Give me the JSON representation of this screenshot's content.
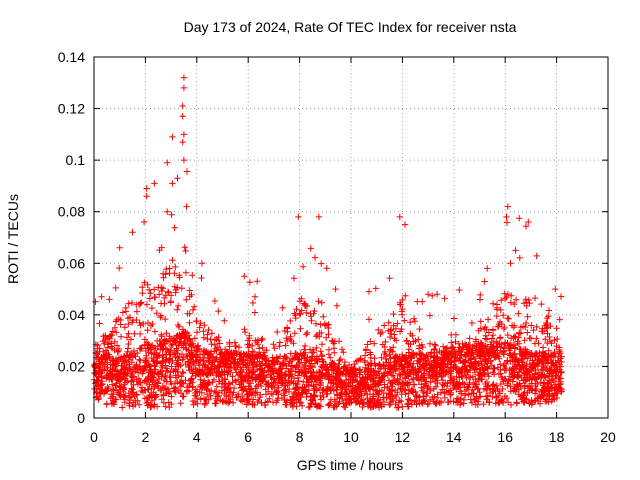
{
  "chart_data": {
    "type": "scatter",
    "title": "Day 173 of 2024, Rate Of TEC Index for receiver nsta",
    "xlabel": "GPS time / hours",
    "ylabel": "ROTI / TECUs",
    "xlim": [
      0,
      20
    ],
    "ylim": [
      0,
      0.14
    ],
    "xticks": [
      0,
      2,
      4,
      6,
      8,
      10,
      12,
      14,
      16,
      18,
      20
    ],
    "yticks": [
      0,
      0.02,
      0.04,
      0.06,
      0.08,
      0.1,
      0.12,
      0.14
    ],
    "ytick_labels": [
      "0",
      "0.02",
      "0.04",
      "0.06",
      "0.08",
      "0.1",
      "0.12",
      "0.14"
    ],
    "grid": true,
    "marker": "+",
    "color": "#ff0000",
    "series": [
      {
        "name": "ROTI",
        "baseline_profile": [
          {
            "x": 0.0,
            "y_min": 0.006,
            "y_median": 0.016,
            "y_max": 0.046
          },
          {
            "x": 1.0,
            "y_min": 0.004,
            "y_median": 0.015,
            "y_max": 0.066
          },
          {
            "x": 2.0,
            "y_min": 0.004,
            "y_median": 0.018,
            "y_max": 0.089
          },
          {
            "x": 3.0,
            "y_min": 0.004,
            "y_median": 0.02,
            "y_max": 0.099
          },
          {
            "x": 3.5,
            "y_min": 0.005,
            "y_median": 0.022,
            "y_max": 0.132
          },
          {
            "x": 4.0,
            "y_min": 0.005,
            "y_median": 0.017,
            "y_max": 0.065
          },
          {
            "x": 5.0,
            "y_min": 0.005,
            "y_median": 0.016,
            "y_max": 0.048
          },
          {
            "x": 6.0,
            "y_min": 0.005,
            "y_median": 0.016,
            "y_max": 0.055
          },
          {
            "x": 7.0,
            "y_min": 0.005,
            "y_median": 0.015,
            "y_max": 0.049
          },
          {
            "x": 8.0,
            "y_min": 0.004,
            "y_median": 0.016,
            "y_max": 0.078
          },
          {
            "x": 9.0,
            "y_min": 0.004,
            "y_median": 0.014,
            "y_max": 0.068
          },
          {
            "x": 10.0,
            "y_min": 0.004,
            "y_median": 0.012,
            "y_max": 0.035
          },
          {
            "x": 10.7,
            "y_min": 0.004,
            "y_median": 0.012,
            "y_max": 0.049
          },
          {
            "x": 12.0,
            "y_min": 0.004,
            "y_median": 0.016,
            "y_max": 0.078
          },
          {
            "x": 13.0,
            "y_min": 0.005,
            "y_median": 0.016,
            "y_max": 0.048
          },
          {
            "x": 14.0,
            "y_min": 0.005,
            "y_median": 0.017,
            "y_max": 0.05
          },
          {
            "x": 15.0,
            "y_min": 0.005,
            "y_median": 0.018,
            "y_max": 0.058
          },
          {
            "x": 16.0,
            "y_min": 0.005,
            "y_median": 0.019,
            "y_max": 0.082
          },
          {
            "x": 17.0,
            "y_min": 0.005,
            "y_median": 0.016,
            "y_max": 0.076
          },
          {
            "x": 18.2,
            "y_min": 0.006,
            "y_median": 0.015,
            "y_max": 0.05
          }
        ],
        "notable_points": [
          {
            "x": 3.5,
            "y": 0.132
          },
          {
            "x": 3.5,
            "y": 0.128
          },
          {
            "x": 3.45,
            "y": 0.121
          },
          {
            "x": 3.45,
            "y": 0.117
          },
          {
            "x": 3.5,
            "y": 0.11
          },
          {
            "x": 3.05,
            "y": 0.109
          },
          {
            "x": 3.45,
            "y": 0.107
          },
          {
            "x": 3.5,
            "y": 0.1
          },
          {
            "x": 2.85,
            "y": 0.099
          },
          {
            "x": 3.25,
            "y": 0.093
          },
          {
            "x": 3.05,
            "y": 0.091
          },
          {
            "x": 2.05,
            "y": 0.089
          },
          {
            "x": 2.05,
            "y": 0.086
          },
          {
            "x": 2.35,
            "y": 0.091
          },
          {
            "x": 3.6,
            "y": 0.082
          },
          {
            "x": 2.85,
            "y": 0.08
          },
          {
            "x": 1.95,
            "y": 0.076
          },
          {
            "x": 7.95,
            "y": 0.078
          },
          {
            "x": 8.75,
            "y": 0.078
          },
          {
            "x": 11.9,
            "y": 0.078
          },
          {
            "x": 16.1,
            "y": 0.082
          },
          {
            "x": 16.05,
            "y": 0.078
          },
          {
            "x": 16.9,
            "y": 0.076
          },
          {
            "x": 12.1,
            "y": 0.075
          },
          {
            "x": 0.6,
            "y": 0.046
          },
          {
            "x": 1.0,
            "y": 0.066
          },
          {
            "x": 4.2,
            "y": 0.06
          },
          {
            "x": 5.85,
            "y": 0.055
          },
          {
            "x": 6.35,
            "y": 0.053
          },
          {
            "x": 9.4,
            "y": 0.05
          },
          {
            "x": 10.7,
            "y": 0.049
          },
          {
            "x": 13.35,
            "y": 0.048
          },
          {
            "x": 17.95,
            "y": 0.05
          },
          {
            "x": 15.3,
            "y": 0.058
          },
          {
            "x": 16.4,
            "y": 0.065
          },
          {
            "x": 13.0,
            "y": 0.048
          }
        ]
      }
    ]
  }
}
